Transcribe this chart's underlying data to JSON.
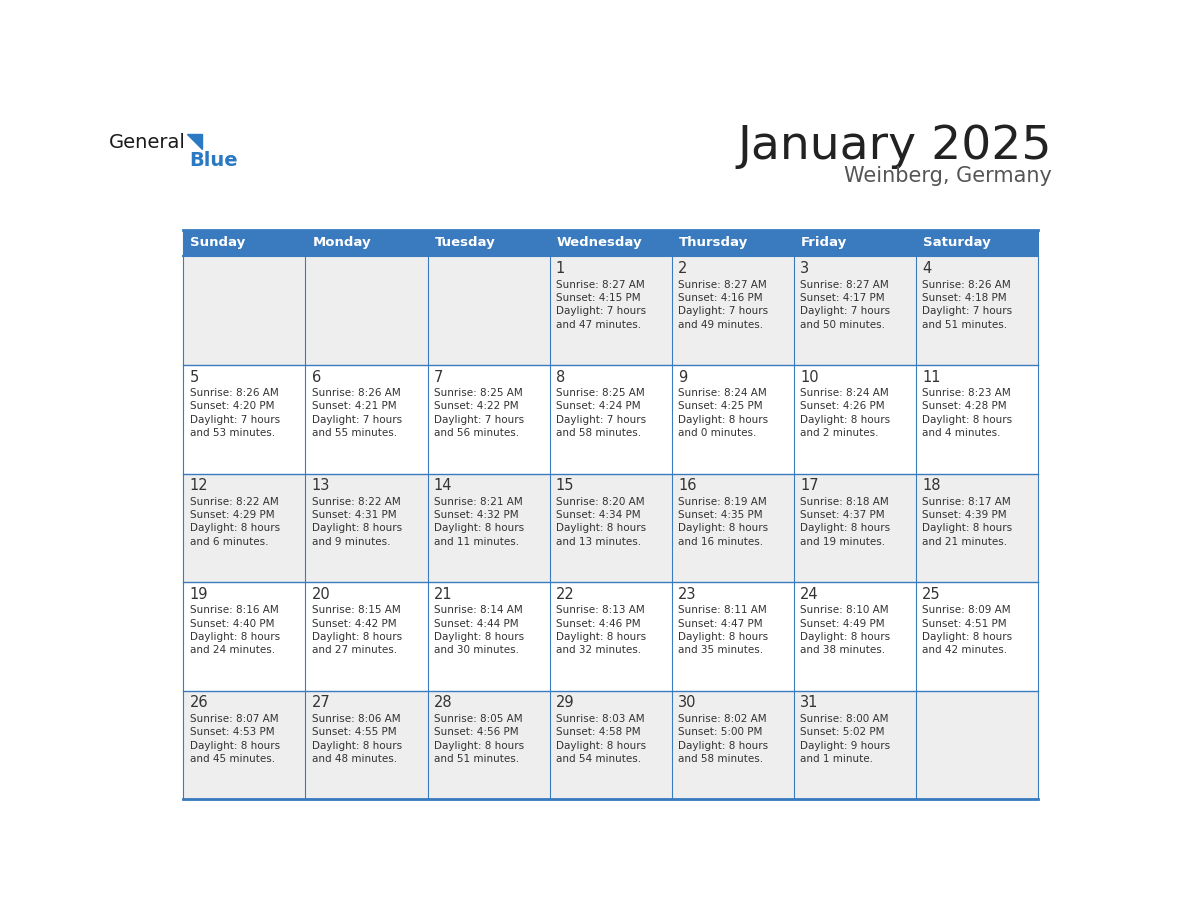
{
  "title": "January 2025",
  "subtitle": "Weinberg, Germany",
  "days_of_week": [
    "Sunday",
    "Monday",
    "Tuesday",
    "Wednesday",
    "Thursday",
    "Friday",
    "Saturday"
  ],
  "header_bg": "#3a7bbf",
  "header_text": "#ffffff",
  "row_bg_odd": "#eeeeee",
  "row_bg_even": "#ffffff",
  "cell_text_color": "#333333",
  "grid_color": "#3a7bbf",
  "title_color": "#222222",
  "subtitle_color": "#555555",
  "logo_general_color": "#1a1a1a",
  "logo_blue_color": "#2b79c2",
  "calendar": [
    [
      null,
      null,
      null,
      {
        "day": 1,
        "sunrise": "8:27 AM",
        "sunset": "4:15 PM",
        "daylight": "7 hours",
        "daylight2": "and 47 minutes."
      },
      {
        "day": 2,
        "sunrise": "8:27 AM",
        "sunset": "4:16 PM",
        "daylight": "7 hours",
        "daylight2": "and 49 minutes."
      },
      {
        "day": 3,
        "sunrise": "8:27 AM",
        "sunset": "4:17 PM",
        "daylight": "7 hours",
        "daylight2": "and 50 minutes."
      },
      {
        "day": 4,
        "sunrise": "8:26 AM",
        "sunset": "4:18 PM",
        "daylight": "7 hours",
        "daylight2": "and 51 minutes."
      }
    ],
    [
      {
        "day": 5,
        "sunrise": "8:26 AM",
        "sunset": "4:20 PM",
        "daylight": "7 hours",
        "daylight2": "and 53 minutes."
      },
      {
        "day": 6,
        "sunrise": "8:26 AM",
        "sunset": "4:21 PM",
        "daylight": "7 hours",
        "daylight2": "and 55 minutes."
      },
      {
        "day": 7,
        "sunrise": "8:25 AM",
        "sunset": "4:22 PM",
        "daylight": "7 hours",
        "daylight2": "and 56 minutes."
      },
      {
        "day": 8,
        "sunrise": "8:25 AM",
        "sunset": "4:24 PM",
        "daylight": "7 hours",
        "daylight2": "and 58 minutes."
      },
      {
        "day": 9,
        "sunrise": "8:24 AM",
        "sunset": "4:25 PM",
        "daylight": "8 hours",
        "daylight2": "and 0 minutes."
      },
      {
        "day": 10,
        "sunrise": "8:24 AM",
        "sunset": "4:26 PM",
        "daylight": "8 hours",
        "daylight2": "and 2 minutes."
      },
      {
        "day": 11,
        "sunrise": "8:23 AM",
        "sunset": "4:28 PM",
        "daylight": "8 hours",
        "daylight2": "and 4 minutes."
      }
    ],
    [
      {
        "day": 12,
        "sunrise": "8:22 AM",
        "sunset": "4:29 PM",
        "daylight": "8 hours",
        "daylight2": "and 6 minutes."
      },
      {
        "day": 13,
        "sunrise": "8:22 AM",
        "sunset": "4:31 PM",
        "daylight": "8 hours",
        "daylight2": "and 9 minutes."
      },
      {
        "day": 14,
        "sunrise": "8:21 AM",
        "sunset": "4:32 PM",
        "daylight": "8 hours",
        "daylight2": "and 11 minutes."
      },
      {
        "day": 15,
        "sunrise": "8:20 AM",
        "sunset": "4:34 PM",
        "daylight": "8 hours",
        "daylight2": "and 13 minutes."
      },
      {
        "day": 16,
        "sunrise": "8:19 AM",
        "sunset": "4:35 PM",
        "daylight": "8 hours",
        "daylight2": "and 16 minutes."
      },
      {
        "day": 17,
        "sunrise": "8:18 AM",
        "sunset": "4:37 PM",
        "daylight": "8 hours",
        "daylight2": "and 19 minutes."
      },
      {
        "day": 18,
        "sunrise": "8:17 AM",
        "sunset": "4:39 PM",
        "daylight": "8 hours",
        "daylight2": "and 21 minutes."
      }
    ],
    [
      {
        "day": 19,
        "sunrise": "8:16 AM",
        "sunset": "4:40 PM",
        "daylight": "8 hours",
        "daylight2": "and 24 minutes."
      },
      {
        "day": 20,
        "sunrise": "8:15 AM",
        "sunset": "4:42 PM",
        "daylight": "8 hours",
        "daylight2": "and 27 minutes."
      },
      {
        "day": 21,
        "sunrise": "8:14 AM",
        "sunset": "4:44 PM",
        "daylight": "8 hours",
        "daylight2": "and 30 minutes."
      },
      {
        "day": 22,
        "sunrise": "8:13 AM",
        "sunset": "4:46 PM",
        "daylight": "8 hours",
        "daylight2": "and 32 minutes."
      },
      {
        "day": 23,
        "sunrise": "8:11 AM",
        "sunset": "4:47 PM",
        "daylight": "8 hours",
        "daylight2": "and 35 minutes."
      },
      {
        "day": 24,
        "sunrise": "8:10 AM",
        "sunset": "4:49 PM",
        "daylight": "8 hours",
        "daylight2": "and 38 minutes."
      },
      {
        "day": 25,
        "sunrise": "8:09 AM",
        "sunset": "4:51 PM",
        "daylight": "8 hours",
        "daylight2": "and 42 minutes."
      }
    ],
    [
      {
        "day": 26,
        "sunrise": "8:07 AM",
        "sunset": "4:53 PM",
        "daylight": "8 hours",
        "daylight2": "and 45 minutes."
      },
      {
        "day": 27,
        "sunrise": "8:06 AM",
        "sunset": "4:55 PM",
        "daylight": "8 hours",
        "daylight2": "and 48 minutes."
      },
      {
        "day": 28,
        "sunrise": "8:05 AM",
        "sunset": "4:56 PM",
        "daylight": "8 hours",
        "daylight2": "and 51 minutes."
      },
      {
        "day": 29,
        "sunrise": "8:03 AM",
        "sunset": "4:58 PM",
        "daylight": "8 hours",
        "daylight2": "and 54 minutes."
      },
      {
        "day": 30,
        "sunrise": "8:02 AM",
        "sunset": "5:00 PM",
        "daylight": "8 hours",
        "daylight2": "and 58 minutes."
      },
      {
        "day": 31,
        "sunrise": "8:00 AM",
        "sunset": "5:02 PM",
        "daylight": "9 hours",
        "daylight2": "and 1 minute."
      },
      null
    ]
  ]
}
